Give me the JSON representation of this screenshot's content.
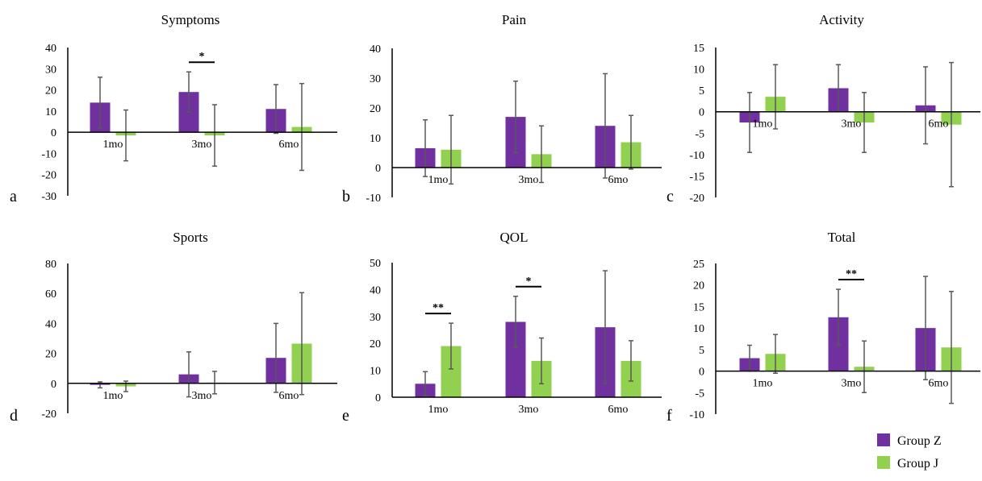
{
  "legend": {
    "series": [
      {
        "name": "Group Z",
        "color": "#7030A0"
      },
      {
        "name": "Group J",
        "color": "#92D050"
      }
    ]
  },
  "chart_data": [
    {
      "type": "bar",
      "panel": "a",
      "title": "Symptoms",
      "categories": [
        "1mo",
        "3mo",
        "6mo"
      ],
      "ylim": [
        -30,
        40
      ],
      "yticks": [
        -30,
        -20,
        -10,
        0,
        10,
        20,
        30,
        40
      ],
      "series": [
        {
          "name": "Group Z",
          "values": [
            14,
            19,
            11
          ],
          "errors": [
            12,
            9.5,
            11.5
          ]
        },
        {
          "name": "Group J",
          "values": [
            -1.5,
            -1.5,
            2.5
          ],
          "errors": [
            12,
            14.5,
            20.5
          ]
        }
      ],
      "significance": [
        {
          "category": "3mo",
          "label": "*"
        }
      ]
    },
    {
      "type": "bar",
      "panel": "b",
      "title": "Pain",
      "categories": [
        "1mo",
        "3mo",
        "6mo"
      ],
      "ylim": [
        -10,
        40
      ],
      "yticks": [
        -10,
        0,
        10,
        20,
        30,
        40
      ],
      "series": [
        {
          "name": "Group Z",
          "values": [
            6.5,
            17,
            14
          ],
          "errors": [
            9.5,
            12,
            17.5
          ]
        },
        {
          "name": "Group J",
          "values": [
            6,
            4.5,
            8.5
          ],
          "errors": [
            11.5,
            9.5,
            9
          ]
        }
      ],
      "significance": []
    },
    {
      "type": "bar",
      "panel": "c",
      "title": "Activity",
      "categories": [
        "1mo",
        "3mo",
        "6mo"
      ],
      "ylim": [
        -20,
        15
      ],
      "yticks": [
        -20,
        -15,
        -10,
        -5,
        0,
        5,
        10,
        15
      ],
      "series": [
        {
          "name": "Group Z",
          "values": [
            -2.5,
            5.5,
            1.5
          ],
          "errors": [
            7,
            5.5,
            9
          ]
        },
        {
          "name": "Group J",
          "values": [
            3.5,
            -2.5,
            -3
          ],
          "errors": [
            7.5,
            7,
            14.5
          ]
        }
      ],
      "significance": []
    },
    {
      "type": "bar",
      "panel": "d",
      "title": "Sports",
      "categories": [
        "1mo",
        "3mo",
        "6mo"
      ],
      "ylim": [
        -20,
        80
      ],
      "yticks": [
        -20,
        0,
        20,
        40,
        60,
        80
      ],
      "series": [
        {
          "name": "Group Z",
          "values": [
            -1,
            6,
            17
          ],
          "errors": [
            2,
            15,
            23
          ]
        },
        {
          "name": "Group J",
          "values": [
            -2,
            0.5,
            26.5
          ],
          "errors": [
            3.5,
            7.5,
            34
          ]
        }
      ],
      "significance": []
    },
    {
      "type": "bar",
      "panel": "e",
      "title": "QOL",
      "categories": [
        "1mo",
        "3mo",
        "6mo"
      ],
      "ylim": [
        0,
        50
      ],
      "yticks": [
        0,
        10,
        20,
        30,
        40,
        50
      ],
      "series": [
        {
          "name": "Group Z",
          "values": [
            5,
            28,
            26
          ],
          "errors": [
            4.5,
            9.5,
            21
          ]
        },
        {
          "name": "Group J",
          "values": [
            19,
            13.5,
            13.5
          ],
          "errors": [
            8.5,
            8.5,
            7.5
          ]
        }
      ],
      "significance": [
        {
          "category": "1mo",
          "label": "**"
        },
        {
          "category": "3mo",
          "label": "*"
        }
      ]
    },
    {
      "type": "bar",
      "panel": "f",
      "title": "Total",
      "categories": [
        "1mo",
        "3mo",
        "6mo"
      ],
      "ylim": [
        -10,
        25
      ],
      "yticks": [
        -10,
        -5,
        0,
        5,
        10,
        15,
        20,
        25
      ],
      "series": [
        {
          "name": "Group Z",
          "values": [
            3,
            12.5,
            10
          ],
          "errors": [
            3,
            6.5,
            12
          ]
        },
        {
          "name": "Group J",
          "values": [
            4,
            1,
            5.5
          ],
          "errors": [
            4.5,
            6,
            13
          ]
        }
      ],
      "significance": [
        {
          "category": "3mo",
          "label": "**"
        }
      ]
    }
  ]
}
